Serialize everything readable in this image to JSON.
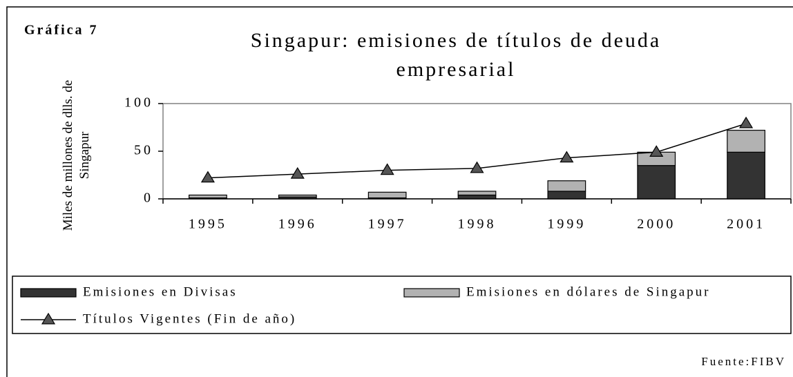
{
  "chart_data": {
    "type": "bar",
    "stacked": true,
    "label": "Gráfica 7",
    "title": "Singapur: emisiones de títulos de deuda empresarial",
    "ylabel": "Miles de millones de dlls. de Singapur",
    "source": "Fuente:FIBV",
    "categories": [
      "1995",
      "1996",
      "1997",
      "1998",
      "1999",
      "2000",
      "2001"
    ],
    "series": [
      {
        "name": "Emisiones en Divisas",
        "type": "bar",
        "color": "#333333",
        "values": [
          1,
          2,
          1,
          4,
          8,
          35,
          49
        ]
      },
      {
        "name": "Emisiones en dólares de  Singapur",
        "type": "bar",
        "color": "#b2b2b2",
        "values": [
          3,
          2,
          6,
          4,
          11,
          14,
          23
        ]
      },
      {
        "name": "Títulos Vigentes (Fin de año)",
        "type": "line",
        "color": "#000000",
        "values": [
          22,
          26,
          30,
          32,
          43,
          49,
          79
        ]
      }
    ],
    "ylim": [
      0,
      100
    ],
    "yticks": [
      0,
      50,
      100
    ],
    "grid": false,
    "legend": "bottom"
  }
}
